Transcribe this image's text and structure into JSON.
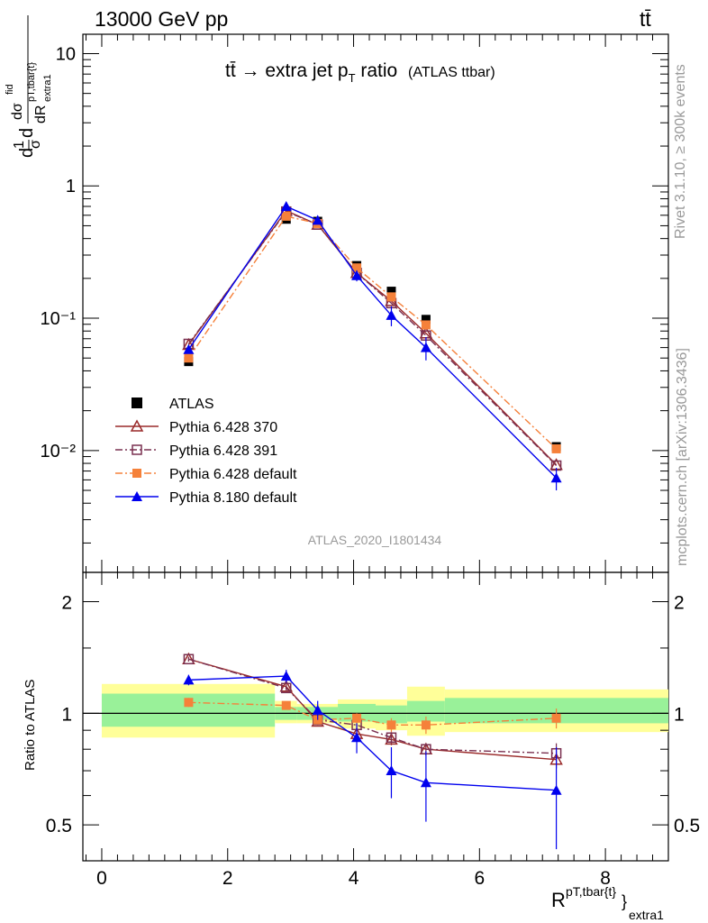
{
  "header": {
    "left": "13000 GeV pp",
    "right": "tt̄"
  },
  "side": {
    "rivet": "Rivet 3.1.10, ≥ 300k events",
    "mcplots": "mcplots.cern.ch [arXiv:1306.3436]"
  },
  "chart_data": {
    "type": "line",
    "title_main": "tt̄ → extra jet p",
    "title_sub": "T",
    "title_tail": " ratio",
    "title_paren": "(ATLAS ttbar)",
    "analysis_tag": "ATLAS_2020_I1801434",
    "xlabel": {
      "base": "R",
      "sup": "pT,tbar{t}",
      "tail": "}",
      "sub": "extra1"
    },
    "ylabel": {
      "frac1_num": "1",
      "frac1_den": "σ",
      "frac2_num": "dσ",
      "frac2_num_sup": "fid",
      "frac2_den": "dR",
      "frac2_den_sup": "pT,tbar{t}",
      "frac2_den_sub": "extra1",
      "d": "d"
    },
    "ratio_ylabel": "Ratio to ATLAS",
    "xlim": [
      -0.3,
      9.0
    ],
    "ylim": [
      0.0012,
      14
    ],
    "yscale": "log",
    "ratio_ylim": [
      0.4,
      2.4
    ],
    "x_ticks": [
      "0",
      "2",
      "4",
      "6",
      "8"
    ],
    "x_tick_values": [
      0,
      2,
      4,
      6,
      8
    ],
    "y_ticks": [
      "10",
      "1",
      "10⁻¹",
      "10⁻²"
    ],
    "y_tick_values": [
      10,
      1,
      0.1,
      0.01
    ],
    "ratio_ticks": [
      "2",
      "1",
      "0.5"
    ],
    "ratio_tick_values": [
      2,
      1,
      0.5
    ],
    "legend_position": "bottom-left",
    "bins": [
      {
        "lo": 0.0,
        "hi": 2.75
      },
      {
        "lo": 2.75,
        "hi": 3.1
      },
      {
        "lo": 3.1,
        "hi": 3.75
      },
      {
        "lo": 3.75,
        "hi": 4.35
      },
      {
        "lo": 4.35,
        "hi": 4.85
      },
      {
        "lo": 4.85,
        "hi": 5.45
      },
      {
        "lo": 5.45,
        "hi": 9.0
      }
    ],
    "band_yellow": [
      [
        0.86,
        1.2
      ],
      [
        0.94,
        1.08
      ],
      [
        0.94,
        1.06
      ],
      [
        0.91,
        1.09
      ],
      [
        0.9,
        1.09
      ],
      [
        0.87,
        1.18
      ],
      [
        0.89,
        1.16
      ]
    ],
    "band_green": [
      [
        0.92,
        1.13
      ],
      [
        0.96,
        1.04
      ],
      [
        0.96,
        1.04
      ],
      [
        0.95,
        1.06
      ],
      [
        0.94,
        1.05
      ],
      [
        0.95,
        1.08
      ],
      [
        0.94,
        1.1
      ]
    ],
    "series": [
      {
        "name": "ATLAS",
        "color": "#000000",
        "marker": "square",
        "line": "none",
        "x": [
          1.38,
          2.93,
          3.43,
          4.05,
          4.6,
          5.15,
          7.22
        ],
        "y": [
          0.047,
          0.56,
          0.54,
          0.25,
          0.16,
          0.098,
          0.0107
        ],
        "ratio": [
          1,
          1,
          1,
          1,
          1,
          1,
          1
        ],
        "ratio_err": [
          0,
          0,
          0,
          0,
          0,
          0,
          0
        ]
      },
      {
        "name": "Pythia 6.428 370",
        "color": "#9a2a2a",
        "marker": "triangle-open",
        "line": "solid",
        "x": [
          1.38,
          2.93,
          3.43,
          4.05,
          4.6,
          5.15,
          7.22
        ],
        "y": [
          0.063,
          0.65,
          0.51,
          0.22,
          0.135,
          0.077,
          0.0078
        ],
        "ratio": [
          1.4,
          1.18,
          0.95,
          0.88,
          0.85,
          0.8,
          0.75
        ],
        "ratio_err": [
          0.02,
          0.02,
          0.02,
          0.03,
          0.03,
          0.03,
          0.04
        ]
      },
      {
        "name": "Pythia 6.428 391",
        "color": "#7a3050",
        "marker": "square-open",
        "line": "dashdot",
        "x": [
          1.38,
          2.93,
          3.43,
          4.05,
          4.6,
          5.15,
          7.22
        ],
        "y": [
          0.064,
          0.64,
          0.51,
          0.22,
          0.13,
          0.074,
          0.0077
        ],
        "ratio": [
          1.4,
          1.17,
          0.96,
          0.93,
          0.86,
          0.8,
          0.78
        ],
        "ratio_err": [
          0.02,
          0.02,
          0.02,
          0.03,
          0.03,
          0.03,
          0.05
        ]
      },
      {
        "name": "Pythia 6.428 default",
        "color": "#f5813a",
        "marker": "square",
        "line": "dashdot",
        "x": [
          1.38,
          2.93,
          3.43,
          4.05,
          4.6,
          5.15,
          7.22
        ],
        "y": [
          0.05,
          0.59,
          0.52,
          0.24,
          0.145,
          0.089,
          0.0103
        ],
        "ratio": [
          1.07,
          1.05,
          0.96,
          0.97,
          0.93,
          0.93,
          0.97
        ],
        "ratio_err": [
          0.03,
          0.02,
          0.02,
          0.03,
          0.04,
          0.05,
          0.06
        ]
      },
      {
        "name": "Pythia 8.180 default",
        "color": "#0000ee",
        "marker": "triangle",
        "line": "solid",
        "x": [
          1.38,
          2.93,
          3.43,
          4.05,
          4.6,
          5.15,
          7.22
        ],
        "y": [
          0.058,
          0.7,
          0.55,
          0.21,
          0.105,
          0.06,
          0.0062
        ],
        "y_err": [
          0.004,
          0.05,
          0.03,
          0.02,
          0.018,
          0.012,
          0.0012
        ],
        "ratio": [
          1.23,
          1.26,
          1.02,
          0.86,
          0.7,
          0.65,
          0.62
        ],
        "ratio_err": [
          0.04,
          0.05,
          0.06,
          0.08,
          0.11,
          0.14,
          0.19
        ]
      }
    ]
  }
}
